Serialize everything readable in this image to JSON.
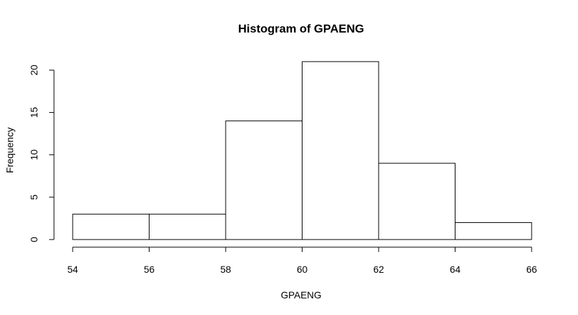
{
  "chart_data": {
    "type": "bar",
    "title": "Histogram of GPAENG",
    "xlabel": "GPAENG",
    "ylabel": "Frequency",
    "bins": [
      {
        "from": 54,
        "to": 56,
        "count": 3
      },
      {
        "from": 56,
        "to": 58,
        "count": 3
      },
      {
        "from": 58,
        "to": 60,
        "count": 14
      },
      {
        "from": 60,
        "to": 62,
        "count": 21
      },
      {
        "from": 62,
        "to": 64,
        "count": 9
      },
      {
        "from": 64,
        "to": 66,
        "count": 2
      }
    ],
    "x_ticks": [
      "54",
      "56",
      "58",
      "60",
      "62",
      "64",
      "66"
    ],
    "y_ticks": [
      "0",
      "5",
      "10",
      "15",
      "20"
    ],
    "xlim": [
      54,
      66
    ],
    "ylim": [
      0,
      21
    ],
    "grid": false,
    "legend": "none",
    "colors": {
      "bar_fill": "#ffffff",
      "bar_stroke": "#000000",
      "background": "#ffffff"
    }
  }
}
